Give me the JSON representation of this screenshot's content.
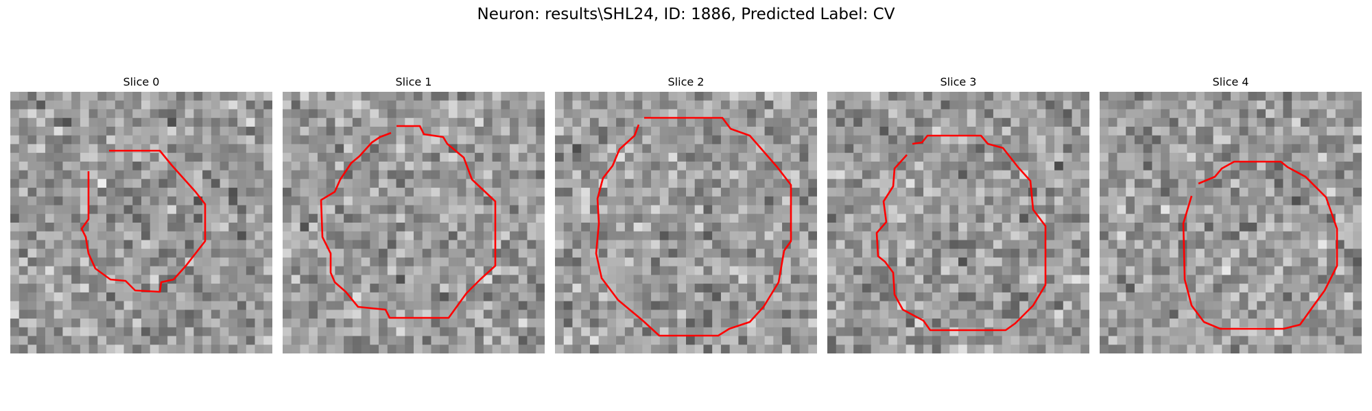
{
  "figure": {
    "title": "Neuron: results\\SHL24, ID: 1886, Predicted Label: CV"
  },
  "colors": {
    "contour": "#ff0000",
    "background": "#ffffff"
  },
  "panels": [
    {
      "title": "Slice 0"
    },
    {
      "title": "Slice 1"
    },
    {
      "title": "Slice 2"
    },
    {
      "title": "Slice 3"
    },
    {
      "title": "Slice 4"
    }
  ]
}
